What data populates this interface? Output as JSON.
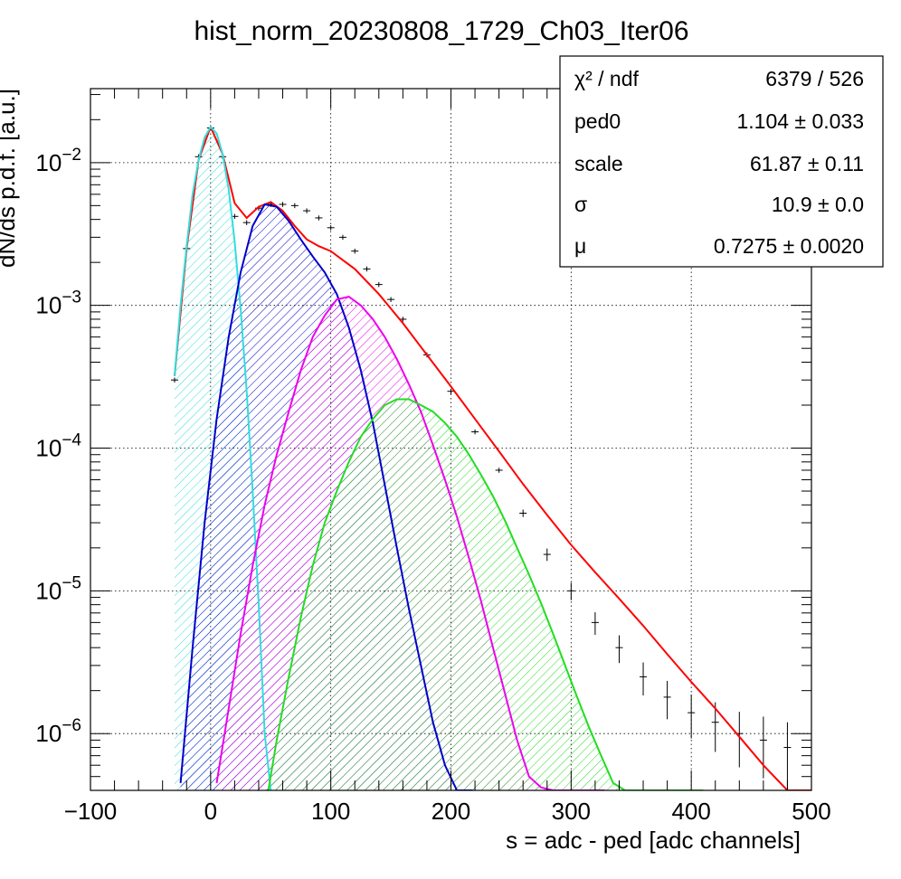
{
  "chart_data": {
    "type": "line",
    "title": "hist_norm_20230808_1729_Ch03_Iter06",
    "xlabel": "s = adc - ped [adc channels]",
    "ylabel": "dN/ds p.d.f. [a.u.]",
    "xlim": [
      -100,
      500
    ],
    "ylim": [
      4e-07,
      0.033
    ],
    "yscale": "log",
    "grid": true,
    "x_ticks": [
      "−100",
      "0",
      "100",
      "200",
      "300",
      "400",
      "500"
    ],
    "y_ticks": [
      {
        "base": "10",
        "exp": "−2",
        "value": 0.01
      },
      {
        "base": "10",
        "exp": "−3",
        "value": 0.001
      },
      {
        "base": "10",
        "exp": "−4",
        "value": 0.0001
      },
      {
        "base": "10",
        "exp": "−5",
        "value": 1e-05
      },
      {
        "base": "10",
        "exp": "−6",
        "value": 1e-06
      }
    ],
    "series": [
      {
        "kind": "histogram",
        "color": "#000000",
        "x": [
          -30,
          -20,
          -10,
          0,
          10,
          20,
          30,
          40,
          50,
          60,
          70,
          80,
          90,
          100,
          110,
          120,
          130,
          140,
          150,
          160,
          180,
          200,
          220,
          240,
          260,
          280,
          300,
          320,
          340,
          360,
          380,
          400,
          420,
          440,
          460,
          480
        ],
        "y": [
          0.0003,
          0.0025,
          0.011,
          0.0175,
          0.011,
          0.0042,
          0.0038,
          0.0048,
          0.0051,
          0.0051,
          0.005,
          0.0046,
          0.0041,
          0.0035,
          0.003,
          0.0024,
          0.0018,
          0.0014,
          0.0011,
          0.0008,
          0.00045,
          0.00025,
          0.00013,
          7e-05,
          3.5e-05,
          1.8e-05,
          1e-05,
          6e-06,
          4e-06,
          2.5e-06,
          1.8e-06,
          1.4e-06,
          1.2e-06,
          1e-06,
          9e-07,
          8e-07
        ]
      },
      {
        "kind": "total-fit",
        "color": "#ff0000",
        "x": [
          -30,
          -20,
          -10,
          0,
          10,
          20,
          30,
          40,
          50,
          60,
          70,
          80,
          90,
          100,
          120,
          140,
          160,
          180,
          200,
          220,
          240,
          260,
          280,
          300,
          320,
          340,
          360,
          380,
          400,
          420,
          440,
          460,
          480,
          500
        ],
        "y": [
          0.00032,
          0.0025,
          0.0105,
          0.0178,
          0.0115,
          0.0052,
          0.0041,
          0.0049,
          0.0053,
          0.0046,
          0.0036,
          0.0029,
          0.0026,
          0.0024,
          0.0018,
          0.0012,
          0.00075,
          0.00045,
          0.00027,
          0.00016,
          9.5e-05,
          5.6e-05,
          3.4e-05,
          2.1e-05,
          1.35e-05,
          8.8e-06,
          5.7e-06,
          3.6e-06,
          2.3e-06,
          1.5e-06,
          9.5e-07,
          6e-07,
          4e-07,
          3.7e-07
        ]
      },
      {
        "kind": "component",
        "n": 0,
        "color": "#33dddd",
        "x": [
          -30,
          -25,
          -20,
          -15,
          -10,
          -5,
          0,
          5,
          10,
          15,
          20,
          25,
          30,
          35,
          40,
          45,
          50
        ],
        "y": [
          0.00032,
          0.001,
          0.0026,
          0.006,
          0.0105,
          0.015,
          0.0178,
          0.016,
          0.0115,
          0.0065,
          0.0028,
          0.00095,
          0.00025,
          5e-05,
          8e-06,
          1e-06,
          3.5e-07
        ]
      },
      {
        "kind": "component",
        "n": 1,
        "color": "#0000cc",
        "x": [
          -25,
          -15,
          -5,
          5,
          15,
          25,
          35,
          45,
          55,
          65,
          75,
          85,
          95,
          105,
          115,
          125,
          135,
          145,
          155,
          165,
          175,
          185,
          195,
          205,
          212,
          218
        ],
        "y": [
          4.5e-07,
          4e-06,
          3e-05,
          0.00016,
          0.0006,
          0.0017,
          0.0036,
          0.0051,
          0.0049,
          0.0039,
          0.0029,
          0.0022,
          0.0017,
          0.0012,
          0.0007,
          0.00035,
          0.00015,
          5.5e-05,
          2e-05,
          7.5e-06,
          3e-06,
          1.2e-06,
          6e-07,
          4e-07,
          4e-07,
          4e-07
        ]
      },
      {
        "kind": "component",
        "n": 2,
        "color": "#ee00ee",
        "x": [
          5,
          15,
          25,
          35,
          45,
          55,
          65,
          75,
          85,
          95,
          105,
          115,
          125,
          135,
          145,
          155,
          165,
          175,
          185,
          195,
          205,
          215,
          225,
          235,
          245,
          255,
          265,
          275,
          285,
          295,
          305,
          315,
          322,
          328
        ],
        "y": [
          4.5e-07,
          1.5e-06,
          5e-06,
          1.5e-05,
          4e-05,
          9e-05,
          0.00018,
          0.00035,
          0.0006,
          0.00085,
          0.0011,
          0.00115,
          0.001,
          0.0008,
          0.0006,
          0.00042,
          0.00028,
          0.00018,
          0.000105,
          6e-05,
          3.3e-05,
          1.7e-05,
          8.5e-06,
          4e-06,
          1.9e-06,
          9e-07,
          5e-07,
          4.2e-07,
          4e-07,
          4e-07,
          4e-07,
          4e-07,
          4e-07,
          4e-07
        ]
      },
      {
        "kind": "component",
        "n": 3,
        "color": "#22dd22",
        "x": [
          48,
          55,
          65,
          75,
          85,
          95,
          105,
          115,
          125,
          135,
          145,
          155,
          165,
          175,
          185,
          195,
          205,
          215,
          225,
          235,
          245,
          255,
          265,
          275,
          285,
          295,
          305,
          315,
          325,
          335,
          345,
          355,
          365,
          375,
          385,
          395,
          405,
          410
        ],
        "y": [
          4e-07,
          9e-07,
          2.5e-06,
          6.5e-06,
          1.5e-05,
          3e-05,
          5e-05,
          8e-05,
          0.00012,
          0.00016,
          0.0002,
          0.00022,
          0.00022,
          0.0002,
          0.00018,
          0.00015,
          0.00012,
          9e-05,
          6.5e-05,
          4.6e-05,
          3.1e-05,
          2e-05,
          1.3e-05,
          8.2e-06,
          5e-06,
          3e-06,
          1.8e-06,
          1.1e-06,
          7e-07,
          4.5e-07,
          4e-07,
          4e-07,
          4e-07,
          4e-07,
          4e-07,
          4e-07,
          4e-07,
          4e-07
        ]
      }
    ],
    "stats": [
      {
        "label": "χ² / ndf",
        "value": "6379 / 526"
      },
      {
        "label": "ped0",
        "value": "1.104 ± 0.033"
      },
      {
        "label": "scale",
        "value": "61.87 ± 0.11"
      },
      {
        "label": "σ",
        "value": "10.9 ± 0.0"
      },
      {
        "label": "μ",
        "value": "0.7275 ± 0.0020"
      }
    ]
  }
}
